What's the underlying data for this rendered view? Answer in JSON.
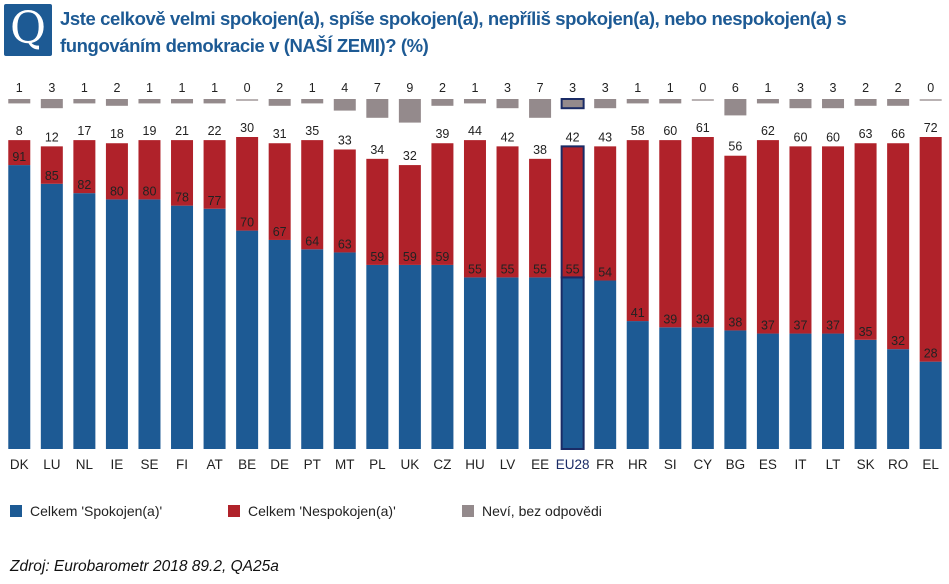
{
  "header": {
    "badge": "Q",
    "title": "Jste celkově velmi spokojen(a), spíše spokojen(a), nepříliš spokojen(a), nebo nespokojen(a) s fungováním demokracie v (NAŠÍ ZEMI)? (%)"
  },
  "chart_data": {
    "type": "bar",
    "stacked": true,
    "categories": [
      "DK",
      "LU",
      "NL",
      "IE",
      "SE",
      "FI",
      "AT",
      "BE",
      "DE",
      "PT",
      "MT",
      "PL",
      "UK",
      "CZ",
      "HU",
      "LV",
      "EE",
      "EU28",
      "FR",
      "HR",
      "SI",
      "CY",
      "BG",
      "ES",
      "IT",
      "LT",
      "SK",
      "RO",
      "EL"
    ],
    "highlight": "EU28",
    "series": [
      {
        "name": "Celkem 'Spokojen(a)'",
        "color": "#1d5a94",
        "values": [
          91,
          85,
          82,
          80,
          80,
          78,
          77,
          70,
          67,
          64,
          63,
          59,
          59,
          59,
          55,
          55,
          55,
          55,
          54,
          41,
          39,
          39,
          38,
          37,
          37,
          37,
          35,
          32,
          28
        ]
      },
      {
        "name": "Celkem 'Nespokojen(a)'",
        "color": "#b0222a",
        "values": [
          8,
          12,
          17,
          18,
          19,
          21,
          22,
          30,
          31,
          35,
          33,
          34,
          32,
          39,
          44,
          42,
          38,
          42,
          43,
          58,
          60,
          61,
          56,
          62,
          60,
          60,
          63,
          66,
          72
        ]
      },
      {
        "name": "Neví, bez odpovědi",
        "color": "#948a8c",
        "values": [
          1,
          3,
          1,
          2,
          1,
          1,
          1,
          0,
          2,
          1,
          4,
          7,
          9,
          2,
          1,
          3,
          7,
          3,
          3,
          1,
          1,
          0,
          6,
          1,
          3,
          3,
          2,
          2,
          0
        ]
      }
    ],
    "ylim": [
      0,
      100
    ]
  },
  "legend": {
    "items": [
      {
        "label": "Celkem 'Spokojen(a)'",
        "color": "#1d5a94"
      },
      {
        "label": "Celkem 'Nespokojen(a)'",
        "color": "#b0222a"
      },
      {
        "label": "Neví, bez odpovědi",
        "color": "#948a8c"
      }
    ]
  },
  "footer": {
    "source": "Zdroj: Eurobarometr  2018 89.2, QA25a"
  }
}
